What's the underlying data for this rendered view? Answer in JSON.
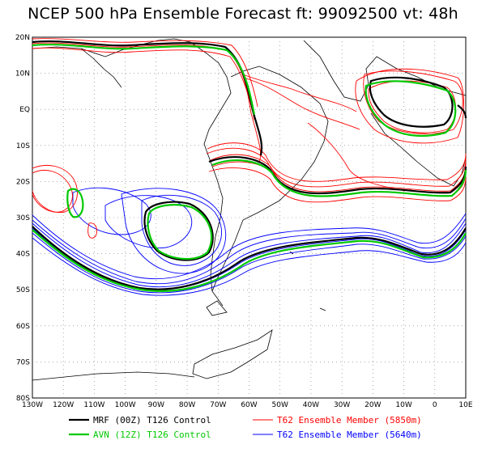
{
  "title": "NCEP 500 hPa Ensemble Forecast   ft: 99092500 vt: 48h",
  "lat_labels": [
    "20N",
    "10N",
    "EQ",
    "10S",
    "20S",
    "30S",
    "40S",
    "50S",
    "60S",
    "70S",
    "80S"
  ],
  "lon_labels": [
    "130W",
    "120W",
    "110W",
    "100W",
    "90W",
    "80W",
    "70W",
    "60W",
    "50W",
    "40W",
    "30W",
    "20W",
    "10W",
    "0",
    "10E"
  ],
  "legend": [
    {
      "label": "MRF (00Z) T126 Control",
      "color": "#000000"
    },
    {
      "label": "AVN (12Z) T126 Control",
      "color": "#00c800"
    },
    {
      "label": "T62 Ensemble Member (5850m)",
      "color": "#ff0000"
    },
    {
      "label": "T62 Ensemble Member (5640m)",
      "color": "#0000ff"
    }
  ]
}
